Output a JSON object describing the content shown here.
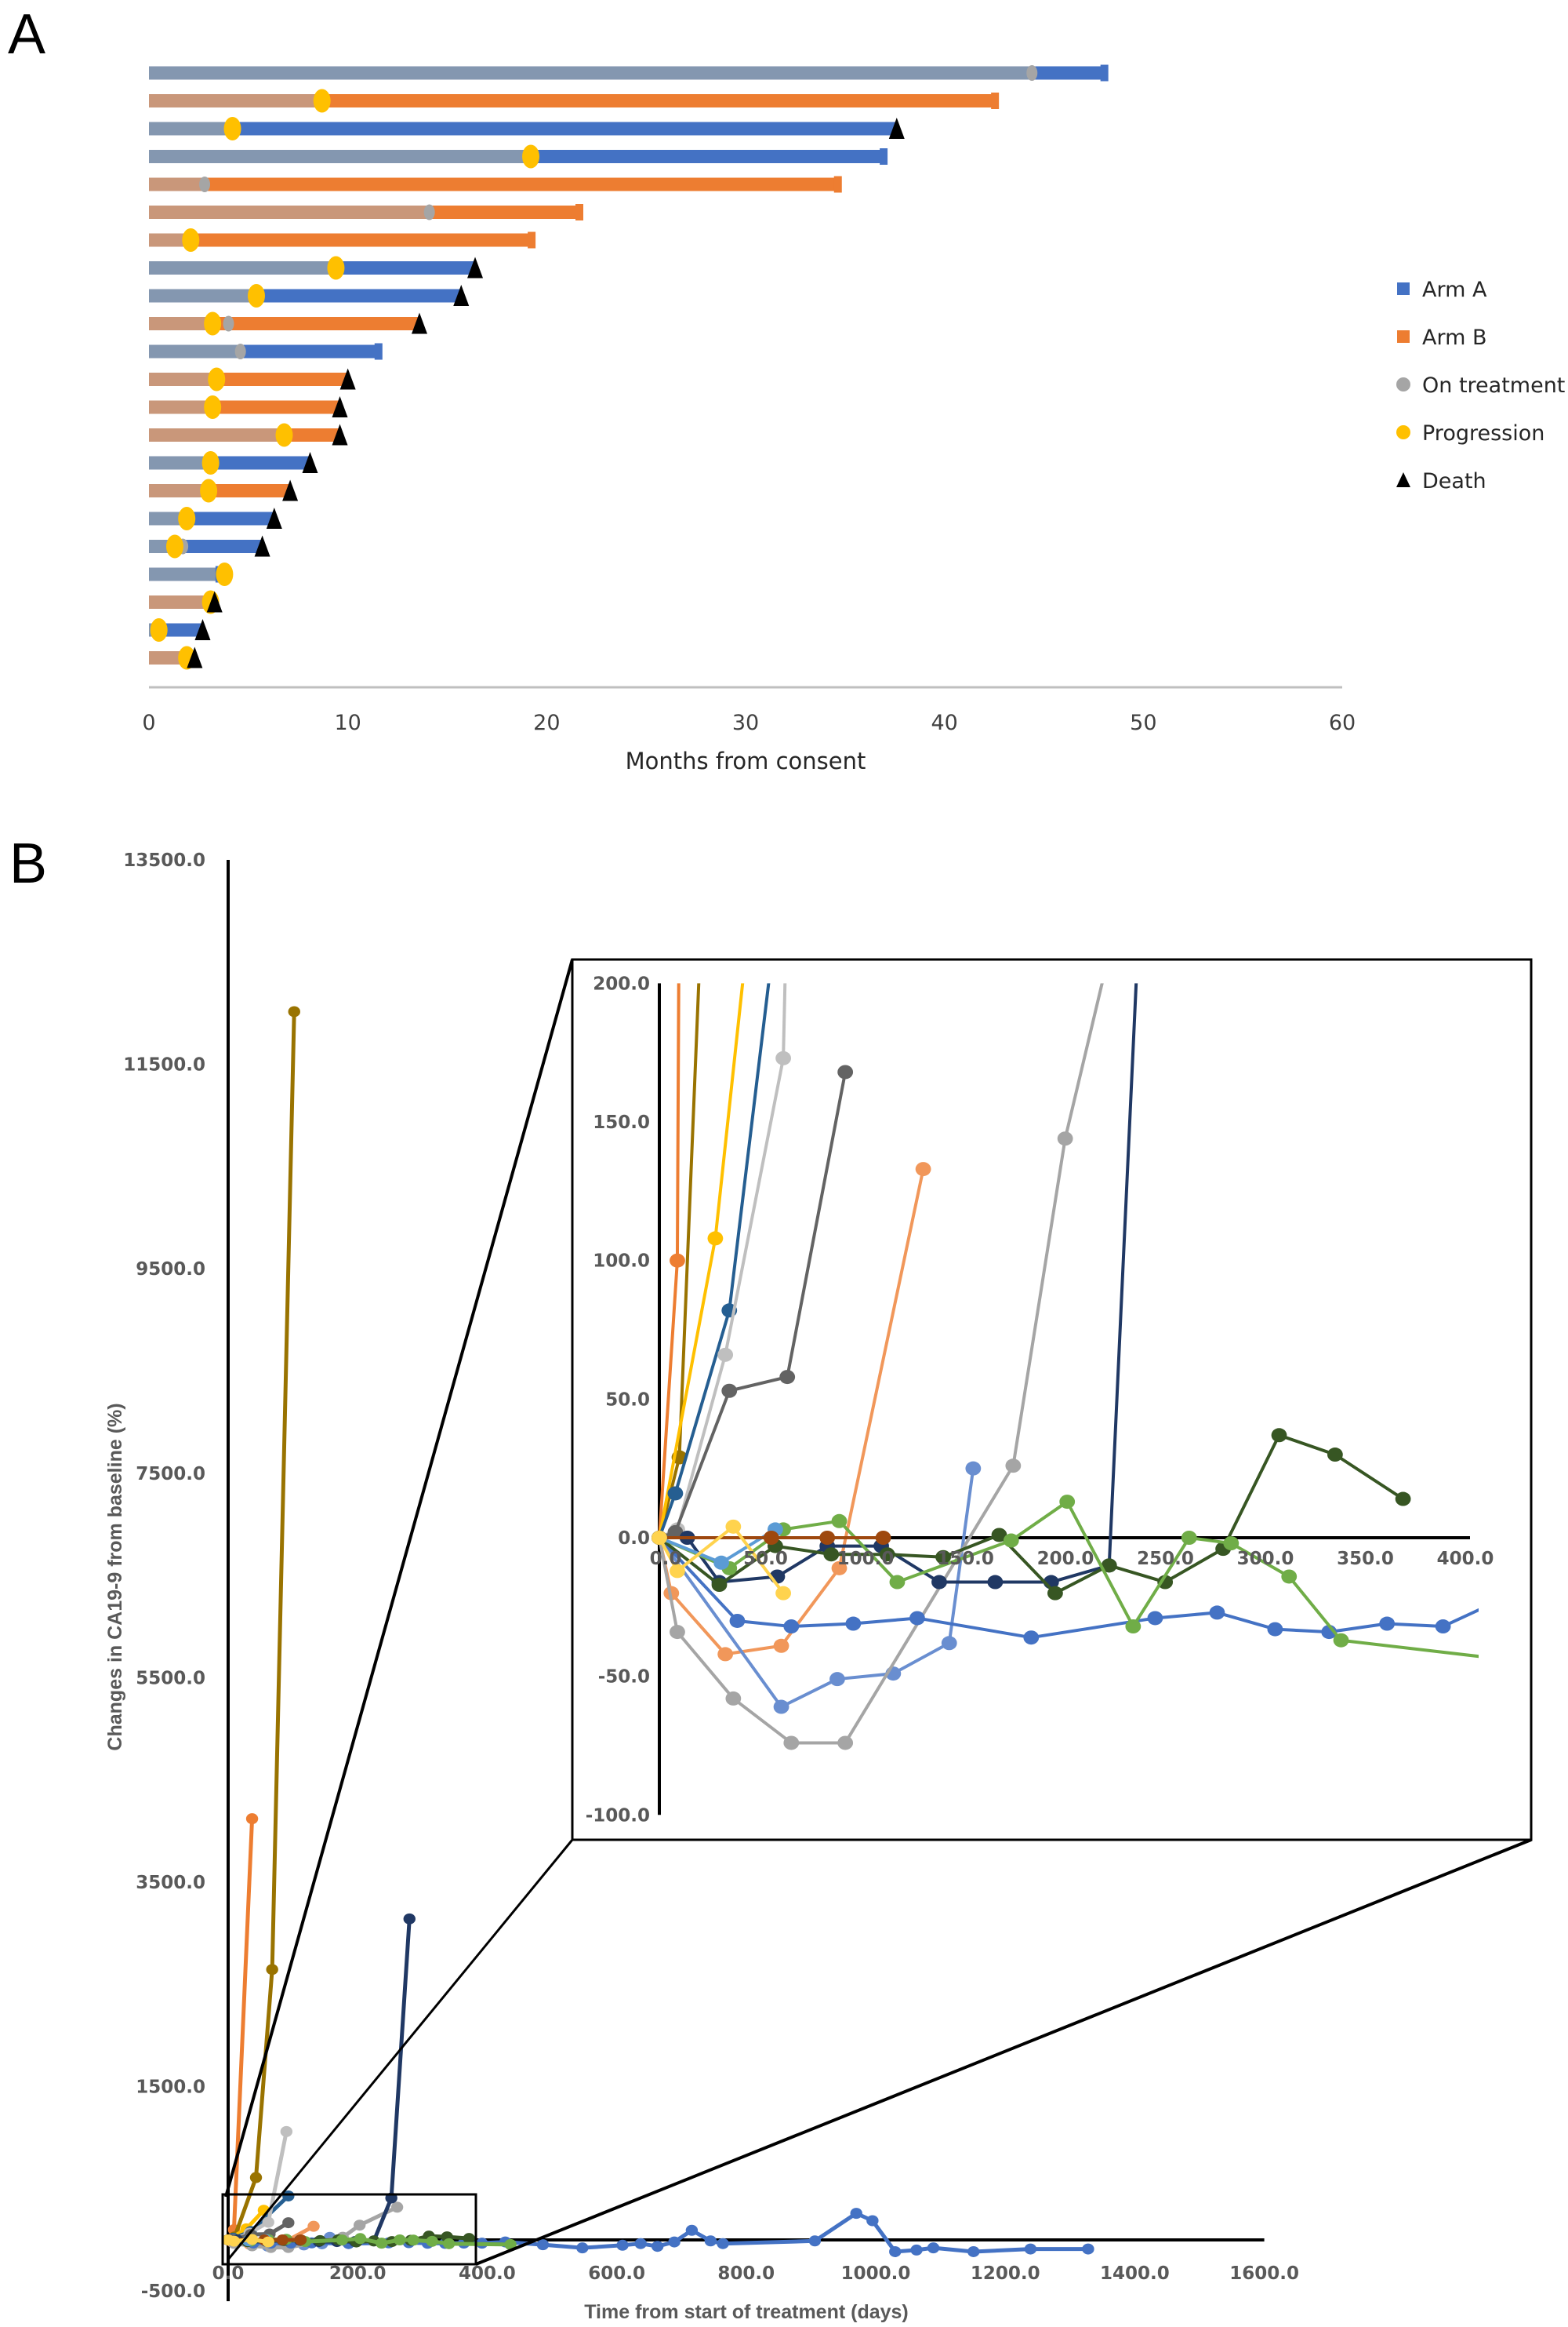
{
  "panels": {
    "a_label": "A",
    "b_label": "B"
  },
  "chart_data": [
    {
      "type": "bar",
      "subtype": "swimmer",
      "xlabel": "Months from consent",
      "xlim": [
        0,
        60
      ],
      "xticks": [
        "0",
        "10",
        "20",
        "30",
        "40",
        "50",
        "60"
      ],
      "legend": {
        "placement": "right",
        "entries": [
          {
            "label": "Arm A",
            "symbol": "square",
            "color": "#4472C4"
          },
          {
            "label": "Arm B",
            "symbol": "square",
            "color": "#ED7D31"
          },
          {
            "label": "On treatment",
            "symbol": "circle",
            "color": "#A5A5A5"
          },
          {
            "label": "Progression",
            "symbol": "circle",
            "color": "#FFC000"
          },
          {
            "label": "Death",
            "symbol": "triangle",
            "color": "#000000"
          }
        ]
      },
      "colors": {
        "arm_a": "#4472C4",
        "arm_a_light": "#8497B0",
        "arm_b": "#ED7D31",
        "arm_b_light": "#C9977A",
        "on_treatment": "#A5A5A5",
        "progression": "#FFC000",
        "death": "#000000"
      },
      "rows": [
        {
          "arm": "A",
          "end": 48.2,
          "on_treatment": 44.4,
          "progression": null,
          "death": false
        },
        {
          "arm": "B",
          "end": 42.7,
          "on_treatment": null,
          "progression": 8.7,
          "death": false
        },
        {
          "arm": "A",
          "end": 37.6,
          "on_treatment": null,
          "progression": 4.2,
          "death": true
        },
        {
          "arm": "A",
          "end": 37.1,
          "on_treatment": null,
          "progression": 19.2,
          "death": false
        },
        {
          "arm": "B",
          "end": 34.8,
          "on_treatment": 2.8,
          "progression": null,
          "death": false
        },
        {
          "arm": "B",
          "end": 21.8,
          "on_treatment": 14.1,
          "progression": null,
          "death": false
        },
        {
          "arm": "B",
          "end": 19.4,
          "on_treatment": null,
          "progression": 2.1,
          "death": false
        },
        {
          "arm": "A",
          "end": 16.4,
          "on_treatment": null,
          "progression": 9.4,
          "death": true
        },
        {
          "arm": "A",
          "end": 15.7,
          "on_treatment": null,
          "progression": 5.4,
          "death": true
        },
        {
          "arm": "B",
          "end": 13.6,
          "on_treatment": 4.0,
          "progression": 3.2,
          "death": true
        },
        {
          "arm": "A",
          "end": 11.7,
          "on_treatment": 4.6,
          "progression": null,
          "death": false
        },
        {
          "arm": "B",
          "end": 10.0,
          "on_treatment": null,
          "progression": 3.4,
          "death": true
        },
        {
          "arm": "B",
          "end": 9.6,
          "on_treatment": null,
          "progression": 3.2,
          "death": true
        },
        {
          "arm": "B",
          "end": 9.6,
          "on_treatment": null,
          "progression": 6.8,
          "death": true
        },
        {
          "arm": "A",
          "end": 8.1,
          "on_treatment": null,
          "progression": 3.1,
          "death": true
        },
        {
          "arm": "B",
          "end": 7.1,
          "on_treatment": null,
          "progression": 3.0,
          "death": true
        },
        {
          "arm": "A",
          "end": 6.3,
          "on_treatment": null,
          "progression": 1.9,
          "death": true
        },
        {
          "arm": "A",
          "end": 5.7,
          "on_treatment": 1.7,
          "progression": 1.3,
          "death": true
        },
        {
          "arm": "A",
          "end": 3.7,
          "on_treatment": null,
          "progression": 3.8,
          "death": false
        },
        {
          "arm": "B",
          "end": 3.3,
          "on_treatment": null,
          "progression": 3.1,
          "death": true
        },
        {
          "arm": "A",
          "end": 2.7,
          "on_treatment": null,
          "progression": 0.5,
          "death": true
        },
        {
          "arm": "B",
          "end": 2.3,
          "on_treatment": null,
          "progression": 1.9,
          "death": true
        }
      ]
    },
    {
      "type": "line",
      "xlabel": "Time from start of treatment (days)",
      "ylabel": "Changes in CA19-9 from baseline (%)",
      "xlim": [
        0,
        1600
      ],
      "ylim": [
        -500,
        13500
      ],
      "xticks": [
        "0.0",
        "200.0",
        "400.0",
        "600.0",
        "800.0",
        "1000.0",
        "1200.0",
        "1400.0",
        "1600.0"
      ],
      "yticks": [
        "-500.0",
        "1500.0",
        "3500.0",
        "5500.0",
        "7500.0",
        "9500.0",
        "11500.0",
        "13500.0"
      ],
      "inset": {
        "xlim": [
          0,
          400
        ],
        "ylim": [
          -100,
          200
        ],
        "xticks": [
          "0.0",
          "50.0",
          "100.0",
          "150.0",
          "200.0",
          "250.0",
          "300.0",
          "350.0",
          "400.0"
        ],
        "yticks": [
          "-100.0",
          "-50.0",
          "0.0",
          "50.0",
          "100.0",
          "150.0",
          "200.0"
        ]
      },
      "series": [
        {
          "color": "#ED7D31",
          "points": [
            [
              0,
              0
            ],
            [
              9,
              100
            ],
            [
              37,
              4120
            ]
          ]
        },
        {
          "color": "#997300",
          "points": [
            [
              0,
              0
            ],
            [
              10,
              29
            ],
            [
              43,
              610
            ],
            [
              68,
              2645
            ],
            [
              102,
              12015
            ]
          ]
        },
        {
          "color": "#FFC000",
          "points": [
            [
              0,
              0
            ],
            [
              28,
              108
            ],
            [
              55,
              290
            ]
          ]
        },
        {
          "color": "#255E91",
          "points": [
            [
              0,
              0
            ],
            [
              8,
              16
            ],
            [
              35,
              82
            ],
            [
              93,
              430
            ]
          ]
        },
        {
          "color": "#BFBFBF",
          "points": [
            [
              0,
              0
            ],
            [
              9,
              3
            ],
            [
              33,
              66
            ],
            [
              62,
              173
            ],
            [
              90,
              1060
            ]
          ]
        },
        {
          "color": "#636363",
          "points": [
            [
              0,
              0
            ],
            [
              8,
              2
            ],
            [
              35,
              53
            ],
            [
              64,
              58
            ],
            [
              93,
              168
            ]
          ]
        },
        {
          "color": "#F1975A",
          "points": [
            [
              0,
              0
            ],
            [
              6,
              -20
            ],
            [
              33,
              -42
            ],
            [
              61,
              -39
            ],
            [
              90,
              -11
            ],
            [
              132,
              133
            ]
          ]
        },
        {
          "color": "#698ED0",
          "points": [
            [
              0,
              0
            ],
            [
              61,
              -61
            ],
            [
              89,
              -51
            ],
            [
              117,
              -49
            ],
            [
              145,
              -38
            ],
            [
              157,
              25
            ]
          ]
        },
        {
          "color": "#A5A5A5",
          "points": [
            [
              0,
              0
            ],
            [
              9,
              -34
            ],
            [
              37,
              -58
            ],
            [
              66,
              -74
            ],
            [
              93,
              -74
            ],
            [
              177,
              26
            ],
            [
              203,
              144
            ],
            [
              261,
              320
            ]
          ]
        },
        {
          "color": "#4472C4",
          "points": [
            [
              0,
              0
            ],
            [
              39,
              -30
            ],
            [
              66,
              -32
            ],
            [
              97,
              -31
            ],
            [
              129,
              -29
            ],
            [
              186,
              -36
            ],
            [
              248,
              -29
            ],
            [
              279,
              -27
            ],
            [
              308,
              -33
            ],
            [
              335,
              -34
            ],
            [
              364,
              -31
            ],
            [
              392,
              -32
            ],
            [
              428,
              -20
            ],
            [
              486,
              -47
            ],
            [
              547,
              -78
            ],
            [
              609,
              -52
            ],
            [
              637,
              -36
            ],
            [
              663,
              -63
            ],
            [
              689,
              -20
            ],
            [
              716,
              94
            ],
            [
              745,
              -10
            ],
            [
              764,
              -36
            ],
            [
              906,
              -10
            ],
            [
              970,
              260
            ],
            [
              995,
              188
            ],
            [
              1030,
              -115
            ],
            [
              1063,
              -99
            ],
            [
              1089,
              -78
            ],
            [
              1151,
              -115
            ],
            [
              1239,
              -89
            ],
            [
              1328,
              -89
            ]
          ]
        },
        {
          "color": "#203864",
          "points": [
            [
              0,
              0
            ],
            [
              14,
              0
            ],
            [
              30,
              -16
            ],
            [
              59,
              -14
            ],
            [
              84,
              -3
            ],
            [
              111,
              -3
            ],
            [
              140,
              -16
            ],
            [
              168,
              -16
            ],
            [
              196,
              -16
            ],
            [
              225,
              -10
            ],
            [
              252,
              410
            ],
            [
              280,
              3140
            ]
          ]
        },
        {
          "color": "#375623",
          "points": [
            [
              0,
              0
            ],
            [
              30,
              -17
            ],
            [
              58,
              -3
            ],
            [
              86,
              -6
            ],
            [
              114,
              -6
            ],
            [
              142,
              -7
            ],
            [
              170,
              1
            ],
            [
              198,
              -20
            ],
            [
              225,
              -10
            ],
            [
              253,
              -16
            ],
            [
              282,
              -4
            ],
            [
              310,
              37
            ],
            [
              338,
              30
            ],
            [
              372,
              14
            ]
          ]
        },
        {
          "color": "#70AD47",
          "points": [
            [
              0,
              0
            ],
            [
              35,
              -11
            ],
            [
              62,
              3
            ],
            [
              90,
              6
            ],
            [
              119,
              -16
            ],
            [
              176,
              -1
            ],
            [
              204,
              13
            ],
            [
              237,
              -32
            ],
            [
              265,
              0
            ],
            [
              286,
              -2
            ],
            [
              315,
              -14
            ],
            [
              341,
              -37
            ],
            [
              436,
              -45
            ]
          ]
        },
        {
          "color": "#5B9BD5",
          "points": [
            [
              0,
              0
            ],
            [
              31,
              -9
            ],
            [
              58,
              3
            ]
          ]
        },
        {
          "color": "#9E480E",
          "points": [
            [
              0,
              0
            ],
            [
              56,
              0
            ],
            [
              84,
              0
            ],
            [
              112,
              0
            ]
          ]
        },
        {
          "color": "#FFD34E",
          "points": [
            [
              0,
              0
            ],
            [
              9,
              -12
            ],
            [
              37,
              4
            ],
            [
              62,
              -20
            ]
          ]
        }
      ]
    }
  ]
}
